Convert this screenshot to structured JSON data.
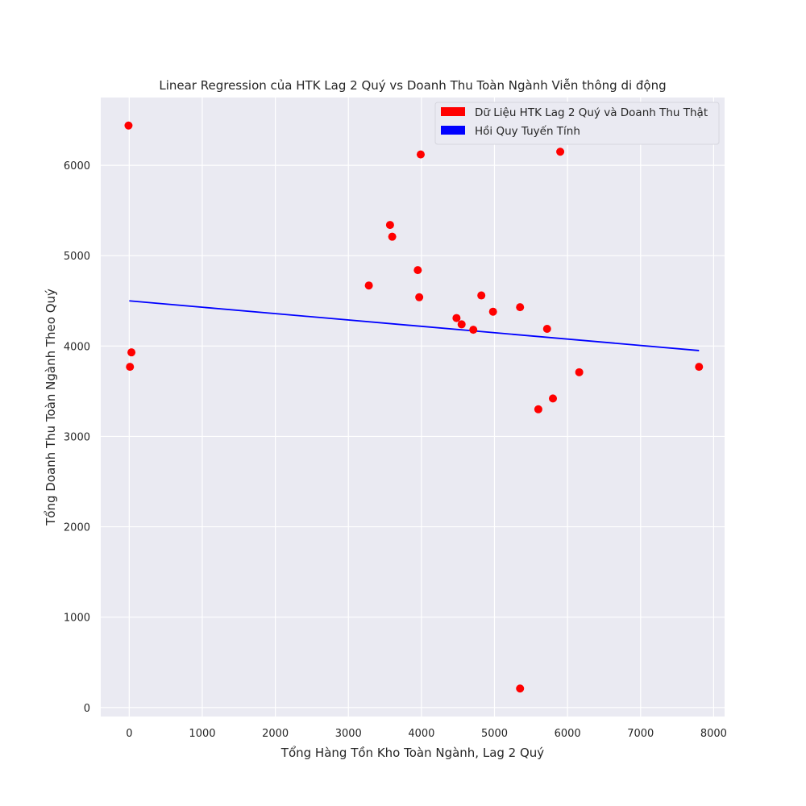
{
  "chart_data": {
    "type": "scatter",
    "title": "Linear Regression của HTK Lag 2 Quý vs Doanh Thu Toàn Ngành Viễn thông di động",
    "xlabel": "Tổng Hàng Tồn Kho Toàn Ngành, Lag 2 Quý",
    "ylabel": "Tổng Doanh Thu Toàn Ngành Theo Quý",
    "xlim": [
      -390,
      8150
    ],
    "ylim": [
      -100,
      6750
    ],
    "xticks": [
      0,
      1000,
      2000,
      3000,
      4000,
      5000,
      6000,
      7000,
      8000
    ],
    "yticks": [
      0,
      1000,
      2000,
      3000,
      4000,
      5000,
      6000
    ],
    "grid": true,
    "legend_position": "top-right",
    "series": [
      {
        "name": "Dữ Liệu HTK Lag 2 Quý và Doanh Thu Thật",
        "kind": "scatter",
        "color": "#ff0000",
        "points": [
          [
            -10,
            6440
          ],
          [
            10,
            3770
          ],
          [
            30,
            3930
          ],
          [
            3280,
            4670
          ],
          [
            3570,
            5340
          ],
          [
            3600,
            5210
          ],
          [
            3950,
            4840
          ],
          [
            3970,
            4540
          ],
          [
            3990,
            6120
          ],
          [
            4480,
            4310
          ],
          [
            4550,
            4240
          ],
          [
            4710,
            4180
          ],
          [
            4820,
            4560
          ],
          [
            4980,
            4380
          ],
          [
            5350,
            4430
          ],
          [
            5350,
            210
          ],
          [
            5600,
            3300
          ],
          [
            5720,
            4190
          ],
          [
            5800,
            3420
          ],
          [
            5900,
            6150
          ],
          [
            6160,
            3710
          ],
          [
            7800,
            3770
          ]
        ]
      },
      {
        "name": "Hồi Quy Tuyến Tính",
        "kind": "line",
        "color": "#0000ff",
        "x": [
          0,
          7800
        ],
        "y": [
          4500,
          3950
        ]
      }
    ]
  },
  "colors": {
    "plot_background": "#eaeaf2",
    "grid": "#ffffff",
    "text": "#262626"
  }
}
